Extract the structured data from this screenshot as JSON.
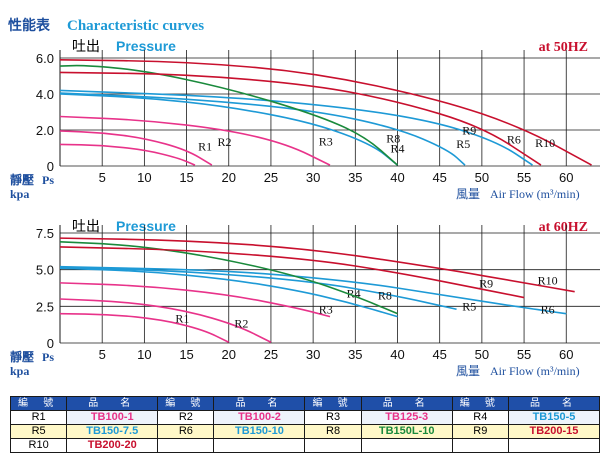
{
  "header": {
    "cn_title": "性能表",
    "en_title": "Characteristic curves",
    "title_color": "#1e4f9e"
  },
  "chart_data": [
    {
      "type": "line",
      "pressure_cn": "吐出",
      "pressure_en": "Pressure",
      "frequency_label": "at  50HZ",
      "ylabel_cn": "靜壓",
      "ylabel_unit1": "Ps",
      "ylabel_unit2": "kpa",
      "xlabel_cn": "風量",
      "xlabel_en": "Air Flow",
      "xlabel_unit": "(m³/min)",
      "xlim": [
        0,
        64
      ],
      "ylim": [
        0,
        6.0
      ],
      "xticks": [
        "5",
        "10",
        "15",
        "20",
        "25",
        "30",
        "35",
        "40",
        "45",
        "50",
        "55",
        "60"
      ],
      "yticks": [
        "6.0",
        "4.0",
        "2.0",
        "0"
      ],
      "series": [
        {
          "name": "R1",
          "color": "#e8338a",
          "label_at": [
            17.2,
            0.85
          ],
          "points": [
            [
              0,
              1.2
            ],
            [
              5,
              1.15
            ],
            [
              10,
              0.9
            ],
            [
              14,
              0.45
            ],
            [
              16,
              0.05
            ]
          ]
        },
        {
          "name": "R2",
          "color": "#e8338a",
          "label_at": [
            19.5,
            1.1
          ],
          "points": [
            [
              0,
              1.95
            ],
            [
              5,
              1.85
            ],
            [
              10,
              1.55
            ],
            [
              15,
              0.9
            ],
            [
              18,
              0.05
            ]
          ]
        },
        {
          "name": "R3",
          "color": "#e8338a",
          "label_at": [
            31.5,
            1.15
          ],
          "points": [
            [
              0,
              2.75
            ],
            [
              10,
              2.55
            ],
            [
              20,
              2.0
            ],
            [
              27,
              1.2
            ],
            [
              32,
              0.05
            ]
          ]
        },
        {
          "name": "R4",
          "color": "#1e9ad6",
          "label_at": [
            40.0,
            0.75
          ],
          "points": [
            [
              0,
              4.0
            ],
            [
              10,
              3.8
            ],
            [
              20,
              3.3
            ],
            [
              30,
              2.4
            ],
            [
              37,
              1.2
            ],
            [
              40,
              0.05
            ]
          ]
        },
        {
          "name": "R5",
          "color": "#1e9ad6",
          "label_at": [
            47.8,
            1.0
          ],
          "points": [
            [
              0,
              4.05
            ],
            [
              15,
              3.75
            ],
            [
              30,
              3.1
            ],
            [
              40,
              2.1
            ],
            [
              46,
              0.9
            ],
            [
              48,
              0.05
            ]
          ]
        },
        {
          "name": "R6",
          "color": "#1e9ad6",
          "label_at": [
            53.8,
            1.25
          ],
          "points": [
            [
              0,
              4.2
            ],
            [
              20,
              3.85
            ],
            [
              35,
              3.2
            ],
            [
              45,
              2.4
            ],
            [
              52,
              1.3
            ],
            [
              56,
              0.05
            ]
          ]
        },
        {
          "name": "R8",
          "color": "#1a8a3c",
          "label_at": [
            39.5,
            1.3
          ],
          "points": [
            [
              0,
              5.55
            ],
            [
              3,
              5.6
            ],
            [
              10,
              5.3
            ],
            [
              20,
              4.3
            ],
            [
              30,
              2.9
            ],
            [
              36,
              1.7
            ],
            [
              40,
              0.05
            ]
          ]
        },
        {
          "name": "R9",
          "color": "#c8102e",
          "label_at": [
            48.5,
            1.75
          ],
          "points": [
            [
              0,
              5.2
            ],
            [
              15,
              5.1
            ],
            [
              30,
              4.5
            ],
            [
              40,
              3.6
            ],
            [
              50,
              2.2
            ],
            [
              57,
              0.05
            ]
          ]
        },
        {
          "name": "R10",
          "color": "#c8102e",
          "label_at": [
            57.5,
            1.05
          ],
          "points": [
            [
              0,
              5.9
            ],
            [
              15,
              5.8
            ],
            [
              30,
              5.2
            ],
            [
              45,
              3.7
            ],
            [
              55,
              2.1
            ],
            [
              63,
              0.05
            ]
          ]
        }
      ]
    },
    {
      "type": "line",
      "pressure_cn": "吐出",
      "pressure_en": "Pressure",
      "frequency_label": "at  60HZ",
      "ylabel_cn": "靜壓",
      "ylabel_unit1": "Ps",
      "ylabel_unit2": "kpa",
      "xlabel_cn": "風量",
      "xlabel_en": "Air Flow",
      "xlabel_unit": "(m³/min)",
      "xlim": [
        0,
        64
      ],
      "ylim": [
        0,
        7.5
      ],
      "xticks": [
        "5",
        "10",
        "15",
        "20",
        "25",
        "30",
        "35",
        "40",
        "45",
        "50",
        "55",
        "60"
      ],
      "yticks": [
        "7.5",
        "5.0",
        "2.5",
        "0"
      ],
      "series": [
        {
          "name": "R1",
          "color": "#e8338a",
          "label_at": [
            14.5,
            1.4
          ],
          "points": [
            [
              0,
              2.0
            ],
            [
              6,
              1.95
            ],
            [
              12,
              1.6
            ],
            [
              17,
              0.9
            ],
            [
              20,
              0.05
            ]
          ]
        },
        {
          "name": "R2",
          "color": "#e8338a",
          "label_at": [
            21.5,
            1.05
          ],
          "points": [
            [
              0,
              3.0
            ],
            [
              8,
              2.8
            ],
            [
              15,
              2.2
            ],
            [
              21,
              1.2
            ],
            [
              25,
              0.05
            ]
          ]
        },
        {
          "name": "R3",
          "color": "#e8338a",
          "label_at": [
            31.5,
            2.0
          ],
          "points": [
            [
              0,
              4.1
            ],
            [
              10,
              3.9
            ],
            [
              20,
              3.3
            ],
            [
              28,
              2.4
            ],
            [
              32,
              1.8
            ]
          ]
        },
        {
          "name": "R4",
          "color": "#1e9ad6",
          "label_at": [
            34.8,
            3.1
          ],
          "points": [
            [
              0,
              5.1
            ],
            [
              10,
              4.9
            ],
            [
              20,
              4.35
            ],
            [
              28,
              3.6
            ],
            [
              34,
              2.8
            ],
            [
              40,
              1.8
            ]
          ]
        },
        {
          "name": "R5",
          "color": "#1e9ad6",
          "label_at": [
            48.5,
            2.2
          ],
          "points": [
            [
              0,
              5.15
            ],
            [
              15,
              4.9
            ],
            [
              30,
              4.2
            ],
            [
              40,
              3.2
            ],
            [
              47,
              2.3
            ]
          ]
        },
        {
          "name": "R6",
          "color": "#1e9ad6",
          "label_at": [
            57.8,
            2.0
          ],
          "points": [
            [
              0,
              5.2
            ],
            [
              20,
              4.95
            ],
            [
              35,
              4.2
            ],
            [
              45,
              3.3
            ],
            [
              55,
              2.4
            ],
            [
              60,
              2.0
            ]
          ]
        },
        {
          "name": "R8",
          "color": "#1a8a3c",
          "label_at": [
            38.5,
            2.95
          ],
          "points": [
            [
              0,
              6.9
            ],
            [
              8,
              6.7
            ],
            [
              18,
              5.9
            ],
            [
              28,
              4.6
            ],
            [
              35,
              3.2
            ],
            [
              40,
              2.0
            ]
          ]
        },
        {
          "name": "R9",
          "color": "#c8102e",
          "label_at": [
            50.5,
            3.8
          ],
          "points": [
            [
              0,
              6.55
            ],
            [
              15,
              6.35
            ],
            [
              30,
              5.7
            ],
            [
              40,
              4.8
            ],
            [
              48,
              3.9
            ],
            [
              55,
              3.1
            ]
          ]
        },
        {
          "name": "R10",
          "color": "#c8102e",
          "label_at": [
            57.8,
            4.0
          ],
          "points": [
            [
              0,
              7.15
            ],
            [
              15,
              7.0
            ],
            [
              30,
              6.4
            ],
            [
              45,
              5.1
            ],
            [
              55,
              4.1
            ],
            [
              61,
              3.5
            ]
          ]
        }
      ]
    }
  ],
  "legend_table": {
    "headers": [
      "編 號",
      "品　名",
      "編 號",
      "品　名",
      "編 號",
      "品　名",
      "編 號",
      "品　名"
    ],
    "rows": [
      {
        "style": "row-a",
        "cells": [
          {
            "code": "R1",
            "model": "TB100-1",
            "color": "#e8338a"
          },
          {
            "code": "R2",
            "model": "TB100-2",
            "color": "#e8338a"
          },
          {
            "code": "R3",
            "model": "TB125-3",
            "color": "#e8338a"
          },
          {
            "code": "R4",
            "model": "TB150-5",
            "color": "#1e9ad6"
          }
        ]
      },
      {
        "style": "row-b",
        "cells": [
          {
            "code": "R5",
            "model": "TB150-7.5",
            "color": "#1e9ad6"
          },
          {
            "code": "R6",
            "model": "TB150-10",
            "color": "#1e9ad6"
          },
          {
            "code": "R8",
            "model": "TB150L-10",
            "color": "#1a8a3c"
          },
          {
            "code": "R9",
            "model": "TB200-15",
            "color": "#c8102e"
          }
        ]
      },
      {
        "style": "row-c",
        "cells": [
          {
            "code": "R10",
            "model": "TB200-20",
            "color": "#c8102e"
          }
        ]
      }
    ]
  }
}
